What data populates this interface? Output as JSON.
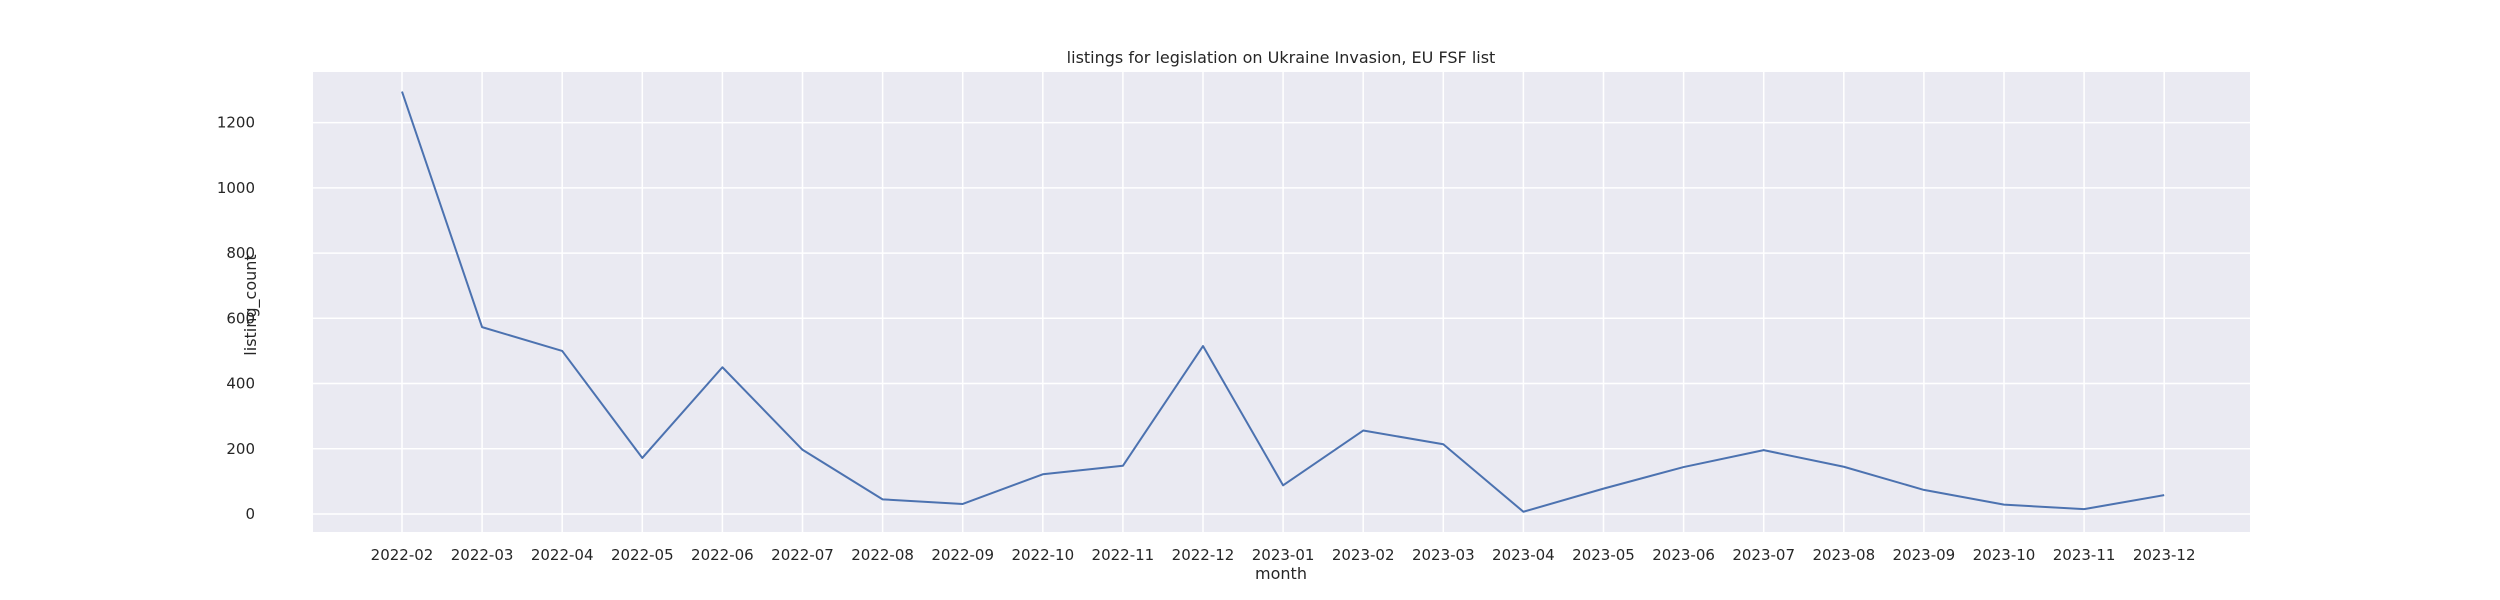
{
  "chart_data": {
    "type": "line",
    "title": "listings for legislation on Ukraine Invasion, EU FSF list",
    "xlabel": "month",
    "ylabel": "listing_count",
    "categories": [
      "2022-02",
      "2022-03",
      "2022-04",
      "2022-05",
      "2022-06",
      "2022-07",
      "2022-08",
      "2022-09",
      "2022-10",
      "2022-11",
      "2022-12",
      "2023-01",
      "2023-02",
      "2023-03",
      "2023-04",
      "2023-05",
      "2023-06",
      "2023-07",
      "2023-08",
      "2023-09",
      "2023-10",
      "2023-11",
      "2023-12"
    ],
    "values": [
      1295,
      573,
      500,
      172,
      450,
      197,
      45,
      31,
      122,
      148,
      515,
      88,
      256,
      214,
      7,
      78,
      144,
      196,
      145,
      74,
      29,
      15,
      58
    ],
    "yticks": [
      0,
      200,
      400,
      600,
      800,
      1000,
      1200
    ],
    "ylim": [
      -55,
      1355
    ],
    "grid": true,
    "background": "#eaeaf2",
    "line_color": "#4c72b0"
  }
}
